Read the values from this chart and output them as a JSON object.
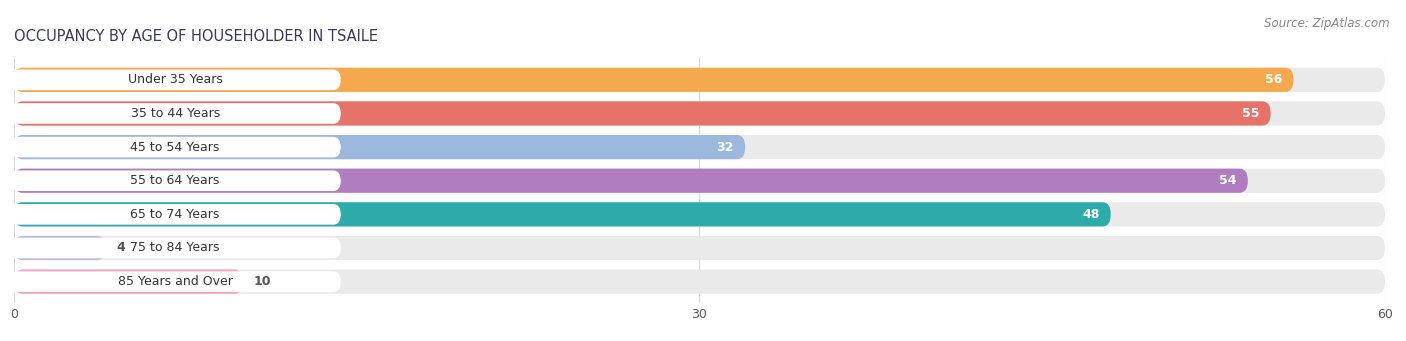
{
  "title": "OCCUPANCY BY AGE OF HOUSEHOLDER IN TSAILE",
  "source": "Source: ZipAtlas.com",
  "categories": [
    "Under 35 Years",
    "35 to 44 Years",
    "45 to 54 Years",
    "55 to 64 Years",
    "65 to 74 Years",
    "75 to 84 Years",
    "85 Years and Over"
  ],
  "values": [
    56,
    55,
    32,
    54,
    48,
    4,
    10
  ],
  "bar_colors": [
    "#F5A84D",
    "#E5736A",
    "#9CB8DE",
    "#B07DC0",
    "#2DAAAA",
    "#B8B8EE",
    "#F5A0C0"
  ],
  "bar_bg_color": "#EAEAEA",
  "xlim": [
    0,
    60
  ],
  "xticks": [
    0,
    30,
    60
  ],
  "bar_height": 0.72,
  "title_fontsize": 10.5,
  "label_fontsize": 9,
  "value_fontsize": 9,
  "source_fontsize": 8.5,
  "title_color": "#3A3A5C",
  "label_color": "#333333",
  "value_color_inside": "#ffffff",
  "value_color_outside": "#555555",
  "bg_color": "#ffffff",
  "axis_color": "#d8d8d8",
  "white_label_bg": "#ffffff"
}
